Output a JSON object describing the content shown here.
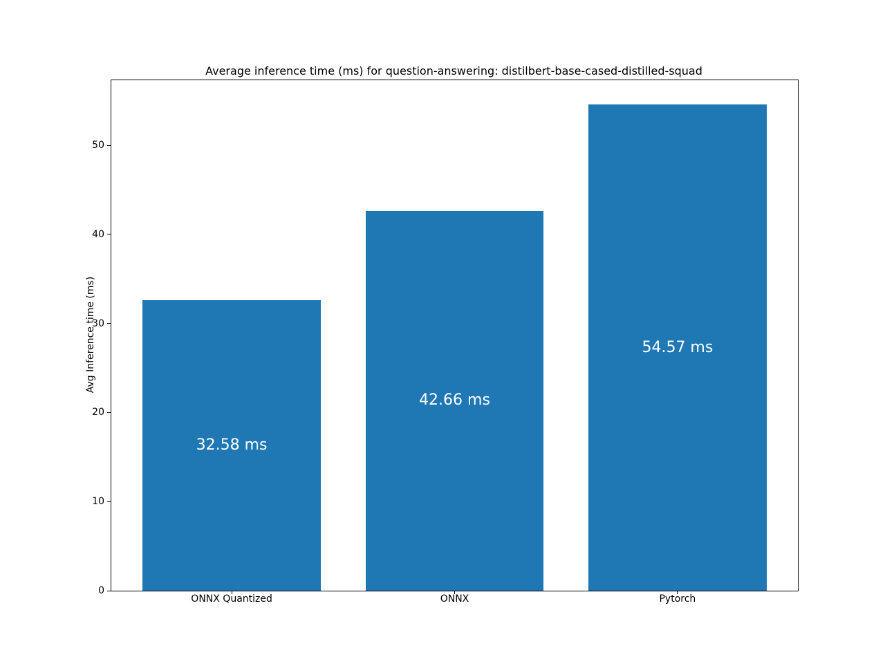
{
  "chart_data": {
    "type": "bar",
    "title": "Average inference time (ms) for question-answering: distilbert-base-cased-distilled-squad",
    "xlabel": "",
    "ylabel": "Avg Inference time (ms)",
    "categories": [
      "ONNX Quantized",
      "ONNX",
      "Pytorch"
    ],
    "values": [
      32.58,
      42.66,
      54.57
    ],
    "bar_labels": [
      "32.58 ms",
      "42.66 ms",
      "54.57 ms"
    ],
    "yticks": [
      0,
      10,
      20,
      30,
      40,
      50
    ],
    "ylim": [
      0,
      57.3
    ],
    "bar_color": "#1f77b4",
    "bar_label_color": "#ffffff",
    "axis_color": "#000000",
    "background_color": "#ffffff",
    "grid": false,
    "legend_position": "none"
  }
}
